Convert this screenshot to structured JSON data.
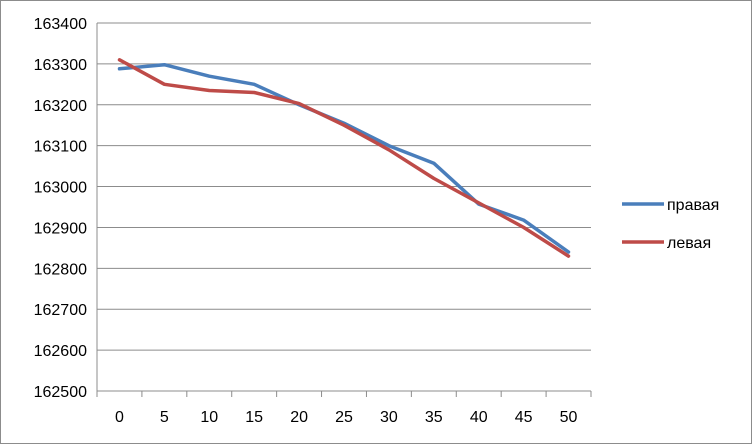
{
  "chart_data": {
    "type": "line",
    "x": [
      0,
      5,
      10,
      15,
      20,
      25,
      30,
      35,
      40,
      45,
      50
    ],
    "ylim": [
      162500,
      163400
    ],
    "yticks": [
      162500,
      162600,
      162700,
      162800,
      162900,
      163000,
      163100,
      163200,
      163300,
      163400
    ],
    "grid": true,
    "legend_position": "right",
    "series": [
      {
        "name": "правая",
        "color": "#4a7ebb",
        "values": [
          163288,
          163298,
          163270,
          163250,
          163200,
          163155,
          163100,
          163057,
          162957,
          162918,
          162840
        ]
      },
      {
        "name": "левая",
        "color": "#be4b48",
        "values": [
          163310,
          163250,
          163235,
          163230,
          163203,
          163150,
          163090,
          163020,
          162960,
          162900,
          162830
        ]
      }
    ]
  }
}
